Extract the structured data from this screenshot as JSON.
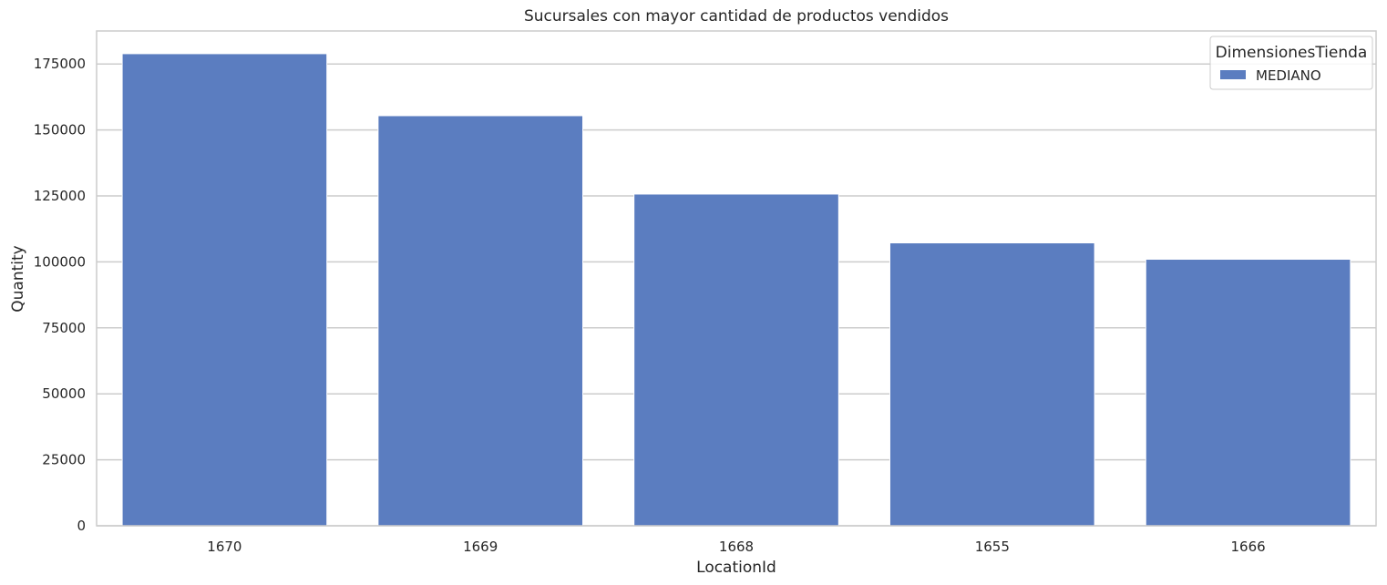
{
  "chart_data": {
    "type": "bar",
    "title": "Sucursales con mayor cantidad de productos vendidos",
    "xlabel": "LocationId",
    "ylabel": "Quantity",
    "categories": [
      "1670",
      "1669",
      "1668",
      "1655",
      "1666"
    ],
    "series": [
      {
        "name": "MEDIANO",
        "values": [
          178900,
          155400,
          125700,
          107200,
          101000
        ]
      }
    ],
    "ylim": [
      0,
      187500
    ],
    "yticks": [
      0,
      25000,
      50000,
      75000,
      100000,
      125000,
      150000,
      175000
    ],
    "ytick_labels": [
      "0",
      "25000",
      "50000",
      "75000",
      "100000",
      "125000",
      "150000",
      "175000"
    ],
    "grid": "horizontal",
    "legend": {
      "title": "DimensionesTienda",
      "position": "top-right"
    },
    "colors": {
      "bar": "#5b7dc0",
      "grid": "#cccccc",
      "axes_edge": "#cccccc",
      "background": "#ffffff"
    }
  }
}
